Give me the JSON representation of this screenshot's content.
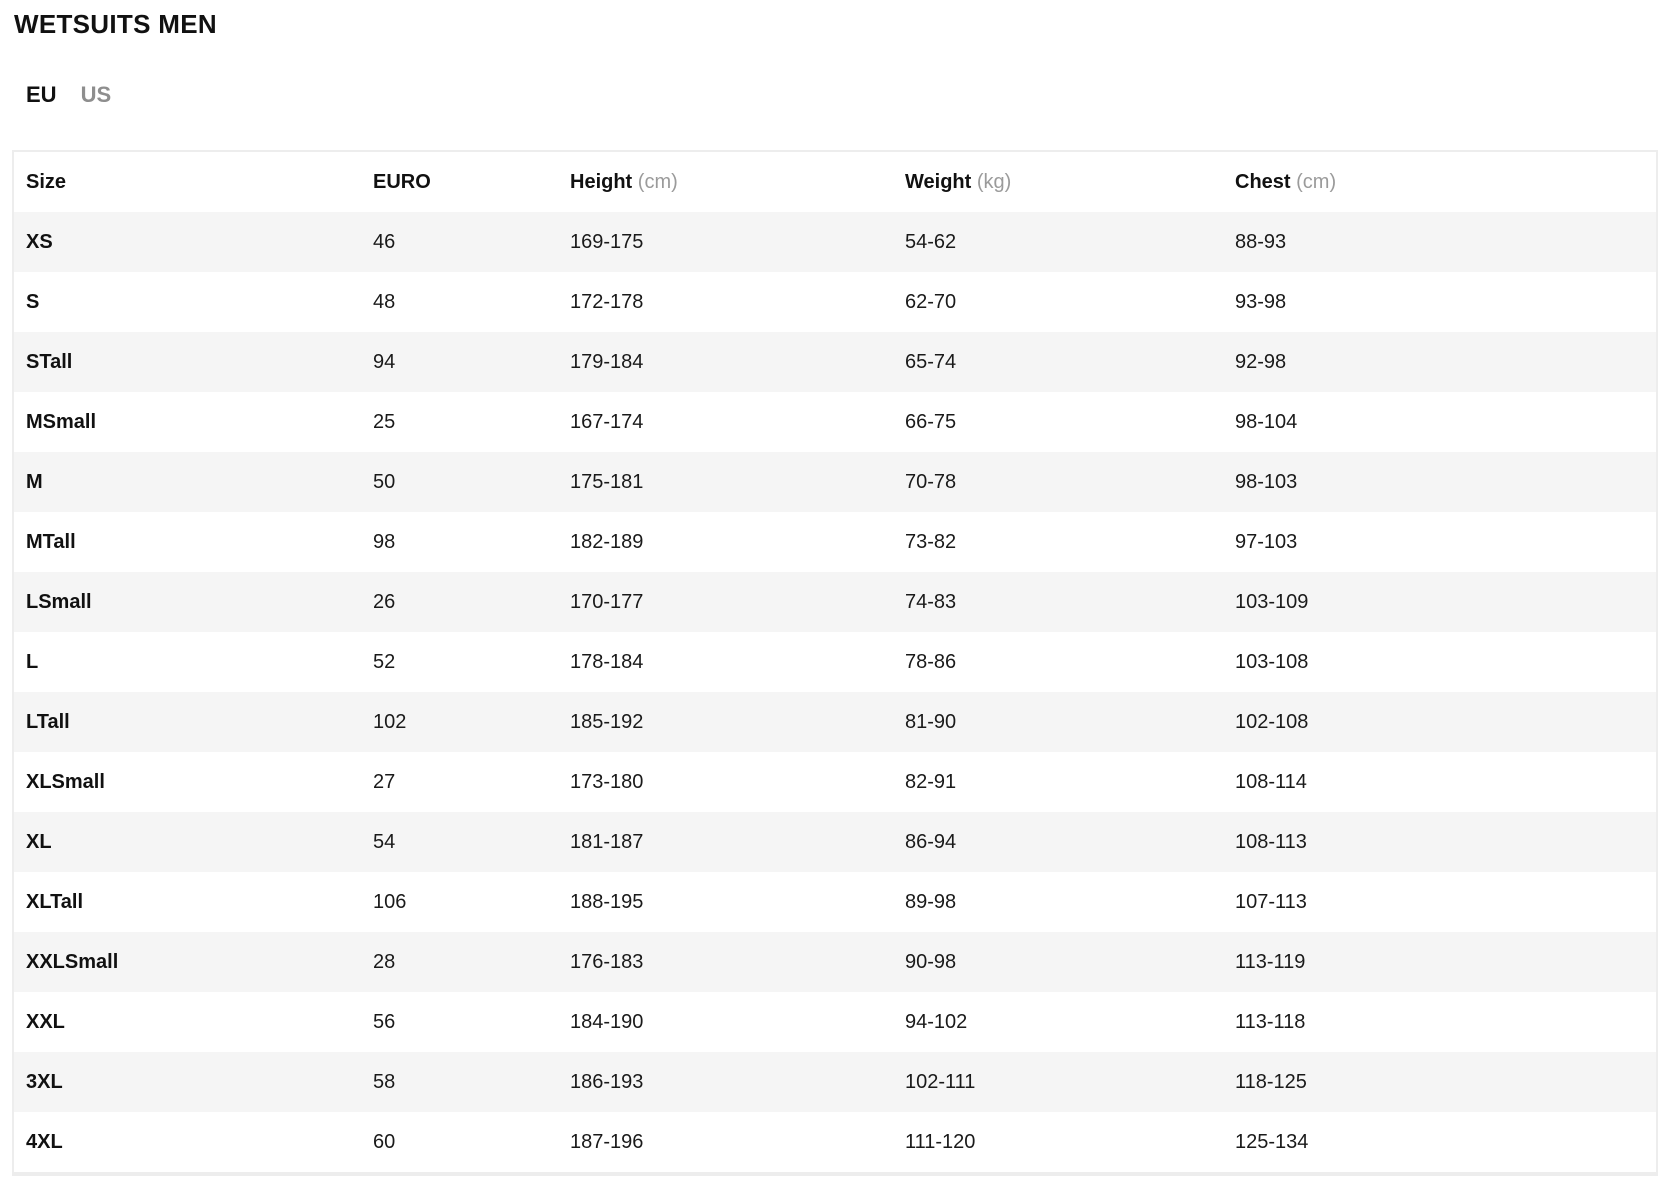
{
  "page": {
    "title": "WETSUITS MEN"
  },
  "tabs": [
    {
      "label": "EU",
      "active": true
    },
    {
      "label": "US",
      "active": false
    }
  ],
  "table": {
    "columns": [
      {
        "label": "Size",
        "unit": ""
      },
      {
        "label": "EURO",
        "unit": ""
      },
      {
        "label": "Height",
        "unit": "(cm)"
      },
      {
        "label": "Weight",
        "unit": "(kg)"
      },
      {
        "label": "Chest",
        "unit": "(cm)"
      }
    ],
    "rows": [
      [
        "XS",
        "46",
        "169-175",
        "54-62",
        "88-93"
      ],
      [
        "S",
        "48",
        "172-178",
        "62-70",
        "93-98"
      ],
      [
        "STall",
        "94",
        "179-184",
        "65-74",
        "92-98"
      ],
      [
        "MSmall",
        "25",
        "167-174",
        "66-75",
        "98-104"
      ],
      [
        "M",
        "50",
        "175-181",
        "70-78",
        "98-103"
      ],
      [
        "MTall",
        "98",
        "182-189",
        "73-82",
        "97-103"
      ],
      [
        "LSmall",
        "26",
        "170-177",
        "74-83",
        "103-109"
      ],
      [
        "L",
        "52",
        "178-184",
        "78-86",
        "103-108"
      ],
      [
        "LTall",
        "102",
        "185-192",
        "81-90",
        "102-108"
      ],
      [
        "XLSmall",
        "27",
        "173-180",
        "82-91",
        "108-114"
      ],
      [
        "XL",
        "54",
        "181-187",
        "86-94",
        "108-113"
      ],
      [
        "XLTall",
        "106",
        "188-195",
        "89-98",
        "107-113"
      ],
      [
        "XXLSmall",
        "28",
        "176-183",
        "90-98",
        "113-119"
      ],
      [
        "XXL",
        "56",
        "184-190",
        "94-102",
        "113-118"
      ],
      [
        "3XL",
        "58",
        "186-193",
        "102-111",
        "118-125"
      ],
      [
        "4XL",
        "60",
        "187-196",
        "111-120",
        "125-134"
      ]
    ]
  },
  "colors": {
    "text": "#1a1a1a",
    "heading": "#111111",
    "muted_tab": "#8e8e8e",
    "muted_unit": "#9b9b9b",
    "row_stripe": "#f5f5f5",
    "table_border": "#ededed",
    "background": "#ffffff"
  }
}
